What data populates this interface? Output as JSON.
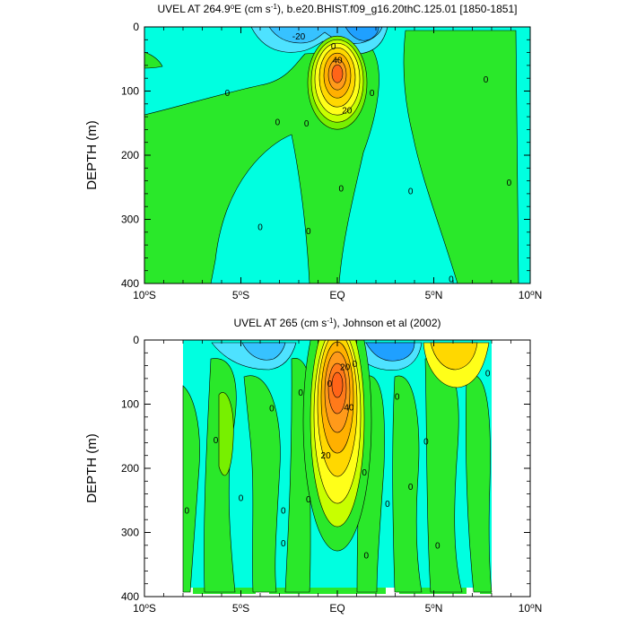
{
  "chart_data": [
    {
      "type": "contour",
      "title_prefix": "UVEL AT 264.9",
      "title_degree": "o",
      "title_mid": "E (cm s",
      "title_exp": "-1",
      "title_suffix": "), b.e20.BHIST.f09_g16.20thC.125.01 [1850-1851]",
      "ylabel": "DEPTH (m)",
      "xlim": [
        -10,
        10
      ],
      "ylim": [
        400,
        0
      ],
      "xticks": [
        {
          "value": -10,
          "label": "10",
          "deg": "o",
          "dir": "S"
        },
        {
          "value": -5,
          "label": "5",
          "deg": "o",
          "dir": "S"
        },
        {
          "value": 0,
          "label": "EQ",
          "deg": "",
          "dir": ""
        },
        {
          "value": 5,
          "label": "5",
          "deg": "o",
          "dir": "N"
        },
        {
          "value": 10,
          "label": "10",
          "deg": "o",
          "dir": "N"
        }
      ],
      "yticks": [
        0,
        100,
        200,
        300,
        400
      ],
      "contour_interval": 10,
      "max_value": 90,
      "core_depth": 80,
      "contour_labels": [
        {
          "x": -2.0,
          "y": 15,
          "text": "-20"
        },
        {
          "x": -0.2,
          "y": 30,
          "text": "0"
        },
        {
          "x": 0.0,
          "y": 52,
          "text": "40"
        },
        {
          "x": 0.5,
          "y": 130,
          "text": "20"
        },
        {
          "x": -5.7,
          "y": 103,
          "text": "0"
        },
        {
          "x": -3.1,
          "y": 148,
          "text": "0"
        },
        {
          "x": -1.6,
          "y": 150,
          "text": "0"
        },
        {
          "x": 1.8,
          "y": 103,
          "text": "0"
        },
        {
          "x": 7.7,
          "y": 82,
          "text": "0"
        },
        {
          "x": 0.2,
          "y": 252,
          "text": "0"
        },
        {
          "x": 3.8,
          "y": 256,
          "text": "0"
        },
        {
          "x": 8.9,
          "y": 243,
          "text": "0"
        },
        {
          "x": -4.0,
          "y": 312,
          "text": "0"
        },
        {
          "x": -1.5,
          "y": 318,
          "text": "0"
        },
        {
          "x": 5.9,
          "y": 393,
          "text": "0"
        }
      ]
    },
    {
      "type": "contour",
      "title_prefix": "UVEL AT 265 (cm s",
      "title_degree": "",
      "title_mid": "",
      "title_exp": "-1",
      "title_suffix": "), Johnson et al (2002)",
      "ylabel": "DEPTH (m)",
      "xlim": [
        -10,
        10
      ],
      "ylim": [
        400,
        0
      ],
      "xticks": [
        {
          "value": -10,
          "label": "10",
          "deg": "o",
          "dir": "S"
        },
        {
          "value": -5,
          "label": "5",
          "deg": "o",
          "dir": "S"
        },
        {
          "value": 0,
          "label": "EQ",
          "deg": "",
          "dir": ""
        },
        {
          "value": 5,
          "label": "5",
          "deg": "o",
          "dir": "N"
        },
        {
          "value": 10,
          "label": "10",
          "deg": "o",
          "dir": "N"
        }
      ],
      "yticks": [
        0,
        100,
        200,
        300,
        400
      ],
      "contour_interval": 10,
      "max_value": 80,
      "core_depth": 70,
      "data_range_x": [
        -8,
        8
      ],
      "contour_labels": [
        {
          "x": -0.4,
          "y": 68,
          "text": "0"
        },
        {
          "x": 0.6,
          "y": 105,
          "text": "40"
        },
        {
          "x": 0.9,
          "y": 37,
          "text": "0"
        },
        {
          "x": 0.4,
          "y": 42,
          "text": "20"
        },
        {
          "x": -0.6,
          "y": 180,
          "text": "20"
        },
        {
          "x": -1.9,
          "y": 82,
          "text": "0"
        },
        {
          "x": -3.4,
          "y": 106,
          "text": "0"
        },
        {
          "x": -6.3,
          "y": 156,
          "text": "0"
        },
        {
          "x": 3.1,
          "y": 88,
          "text": "0"
        },
        {
          "x": 4.6,
          "y": 158,
          "text": "0"
        },
        {
          "x": 7.8,
          "y": 52,
          "text": "0"
        },
        {
          "x": 1.4,
          "y": 206,
          "text": "0"
        },
        {
          "x": 3.8,
          "y": 229,
          "text": "0"
        },
        {
          "x": 2.6,
          "y": 255,
          "text": "0"
        },
        {
          "x": -5.0,
          "y": 246,
          "text": "0"
        },
        {
          "x": -1.5,
          "y": 248,
          "text": "0"
        },
        {
          "x": -7.8,
          "y": 266,
          "text": "0"
        },
        {
          "x": -2.8,
          "y": 266,
          "text": "0"
        },
        {
          "x": -2.8,
          "y": 317,
          "text": "0"
        },
        {
          "x": 1.5,
          "y": 336,
          "text": "0"
        },
        {
          "x": 5.2,
          "y": 320,
          "text": "0"
        }
      ]
    }
  ],
  "colors": {
    "neg3": "#1fa0ff",
    "neg2": "#37c2ff",
    "neg1": "#4ee2ff",
    "neg0": "#00ffe0",
    "pos0": "#2ae82a",
    "pos1": "#77f000",
    "pos2": "#c8ff00",
    "pos3": "#ffff19",
    "pos4": "#ffd800",
    "pos5": "#ffb000",
    "pos6": "#ff9a1a",
    "pos7": "#ff7a1a",
    "pos8": "#ff6418"
  }
}
